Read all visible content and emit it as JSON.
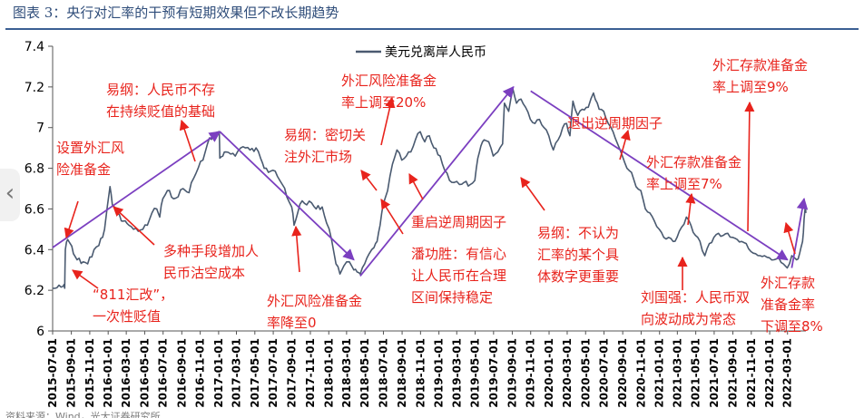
{
  "page": {
    "title": "图表 3：央行对汇率的干预有短期效果但不改长期趋势",
    "footer": "资料来源：Wind，光大证券研究所"
  },
  "colors": {
    "series": "#4a5a70",
    "trend": "#7b3fc0",
    "annotation": "#e8231c",
    "title": "#2f4d7a"
  },
  "chart_data": {
    "type": "line",
    "title": "",
    "xlabel": "",
    "ylabel": "",
    "ylim": [
      6.0,
      7.4
    ],
    "yticks": [
      6,
      6.2,
      6.4,
      6.6,
      6.8,
      7,
      7.2,
      7.4
    ],
    "xrange": [
      "2015-07-01",
      "2022-05-01"
    ],
    "xticks": [
      "2015-07-01",
      "2015-09-01",
      "2015-11-01",
      "2016-01-01",
      "2016-03-01",
      "2016-05-01",
      "2016-07-01",
      "2016-09-01",
      "2016-11-01",
      "2017-01-01",
      "2017-03-01",
      "2017-05-01",
      "2017-07-01",
      "2017-09-01",
      "2017-11-01",
      "2018-01-01",
      "2018-03-01",
      "2018-05-01",
      "2018-07-01",
      "2018-09-01",
      "2018-11-01",
      "2019-01-01",
      "2019-03-01",
      "2019-05-01",
      "2019-07-01",
      "2019-09-01",
      "2019-11-01",
      "2020-01-01",
      "2020-03-01",
      "2020-05-01",
      "2020-07-01",
      "2020-09-01",
      "2020-11-01",
      "2021-01-01",
      "2021-03-01",
      "2021-05-01",
      "2021-07-01",
      "2021-09-01",
      "2021-11-01",
      "2022-01-01",
      "2022-03-01"
    ],
    "grid": false,
    "legend": "top-center",
    "series": [
      {
        "name": "美元兑离岸人民币",
        "points": [
          [
            "2015-07-01",
            6.21
          ],
          [
            "2015-08-05",
            6.22
          ],
          [
            "2015-08-10",
            6.21
          ],
          [
            "2015-08-12",
            6.4
          ],
          [
            "2015-08-20",
            6.45
          ],
          [
            "2015-08-28",
            6.43
          ],
          [
            "2015-09-08",
            6.38
          ],
          [
            "2015-09-20",
            6.35
          ],
          [
            "2015-10-10",
            6.34
          ],
          [
            "2015-10-25",
            6.33
          ],
          [
            "2015-11-15",
            6.4
          ],
          [
            "2015-12-01",
            6.42
          ],
          [
            "2015-12-20",
            6.5
          ],
          [
            "2016-01-07",
            6.71
          ],
          [
            "2016-01-15",
            6.62
          ],
          [
            "2016-02-01",
            6.58
          ],
          [
            "2016-02-20",
            6.54
          ],
          [
            "2016-03-10",
            6.52
          ],
          [
            "2016-03-25",
            6.5
          ],
          [
            "2016-04-10",
            6.49
          ],
          [
            "2016-04-25",
            6.5
          ],
          [
            "2016-05-10",
            6.52
          ],
          [
            "2016-05-25",
            6.58
          ],
          [
            "2016-06-10",
            6.6
          ],
          [
            "2016-06-20",
            6.56
          ],
          [
            "2016-06-30",
            6.65
          ],
          [
            "2016-07-15",
            6.69
          ],
          [
            "2016-08-05",
            6.65
          ],
          [
            "2016-08-20",
            6.66
          ],
          [
            "2016-09-05",
            6.7
          ],
          [
            "2016-09-25",
            6.68
          ],
          [
            "2016-10-10",
            6.75
          ],
          [
            "2016-10-25",
            6.8
          ],
          [
            "2016-11-10",
            6.84
          ],
          [
            "2016-11-25",
            6.92
          ],
          [
            "2016-12-15",
            6.97
          ],
          [
            "2017-01-03",
            6.98
          ],
          [
            "2017-01-05",
            6.85
          ],
          [
            "2017-01-15",
            6.86
          ],
          [
            "2017-01-25",
            6.88
          ],
          [
            "2017-02-10",
            6.87
          ],
          [
            "2017-02-25",
            6.86
          ],
          [
            "2017-03-15",
            6.9
          ],
          [
            "2017-03-31",
            6.9
          ],
          [
            "2017-04-15",
            6.89
          ],
          [
            "2017-05-05",
            6.9
          ],
          [
            "2017-05-20",
            6.85
          ],
          [
            "2017-06-01",
            6.8
          ],
          [
            "2017-06-15",
            6.78
          ],
          [
            "2017-06-30",
            6.79
          ],
          [
            "2017-07-15",
            6.76
          ],
          [
            "2017-07-31",
            6.72
          ],
          [
            "2017-08-15",
            6.66
          ],
          [
            "2017-08-31",
            6.61
          ],
          [
            "2017-09-08",
            6.52
          ],
          [
            "2017-09-20",
            6.58
          ],
          [
            "2017-10-05",
            6.64
          ],
          [
            "2017-10-20",
            6.62
          ],
          [
            "2017-11-05",
            6.63
          ],
          [
            "2017-11-20",
            6.6
          ],
          [
            "2017-12-10",
            6.61
          ],
          [
            "2017-12-25",
            6.53
          ],
          [
            "2018-01-10",
            6.45
          ],
          [
            "2018-01-25",
            6.33
          ],
          [
            "2018-02-07",
            6.28
          ],
          [
            "2018-02-20",
            6.32
          ],
          [
            "2018-03-10",
            6.34
          ],
          [
            "2018-03-25",
            6.3
          ],
          [
            "2018-04-05",
            6.29
          ],
          [
            "2018-04-15",
            6.28
          ],
          [
            "2018-04-30",
            6.33
          ],
          [
            "2018-05-15",
            6.38
          ],
          [
            "2018-05-31",
            6.41
          ],
          [
            "2018-06-10",
            6.44
          ],
          [
            "2018-06-20",
            6.52
          ],
          [
            "2018-06-30",
            6.62
          ],
          [
            "2018-07-15",
            6.69
          ],
          [
            "2018-07-31",
            6.82
          ],
          [
            "2018-08-15",
            6.89
          ],
          [
            "2018-08-31",
            6.84
          ],
          [
            "2018-09-15",
            6.86
          ],
          [
            "2018-09-30",
            6.88
          ],
          [
            "2018-10-15",
            6.94
          ],
          [
            "2018-10-31",
            6.98
          ],
          [
            "2018-11-15",
            6.93
          ],
          [
            "2018-11-30",
            6.96
          ],
          [
            "2018-12-15",
            6.9
          ],
          [
            "2019-01-05",
            6.86
          ],
          [
            "2019-01-20",
            6.79
          ],
          [
            "2019-02-05",
            6.74
          ],
          [
            "2019-02-20",
            6.73
          ],
          [
            "2019-03-10",
            6.72
          ],
          [
            "2019-03-25",
            6.73
          ],
          [
            "2019-04-15",
            6.72
          ],
          [
            "2019-04-30",
            6.74
          ],
          [
            "2019-05-10",
            6.85
          ],
          [
            "2019-05-20",
            6.91
          ],
          [
            "2019-05-31",
            6.94
          ],
          [
            "2019-06-15",
            6.93
          ],
          [
            "2019-06-30",
            6.86
          ],
          [
            "2019-07-15",
            6.88
          ],
          [
            "2019-07-31",
            6.92
          ],
          [
            "2019-08-06",
            7.12
          ],
          [
            "2019-08-20",
            7.08
          ],
          [
            "2019-09-03",
            7.19
          ],
          [
            "2019-09-15",
            7.12
          ],
          [
            "2019-09-30",
            7.14
          ],
          [
            "2019-10-15",
            7.1
          ],
          [
            "2019-10-31",
            7.04
          ],
          [
            "2019-11-15",
            7.02
          ],
          [
            "2019-11-30",
            7.04
          ],
          [
            "2019-12-15",
            7.0
          ],
          [
            "2019-12-31",
            6.96
          ],
          [
            "2020-01-15",
            6.89
          ],
          [
            "2020-01-31",
            6.94
          ],
          [
            "2020-02-15",
            7.0
          ],
          [
            "2020-02-28",
            7.02
          ],
          [
            "2020-03-10",
            6.96
          ],
          [
            "2020-03-20",
            7.13
          ],
          [
            "2020-04-05",
            7.06
          ],
          [
            "2020-04-20",
            7.09
          ],
          [
            "2020-05-10",
            7.1
          ],
          [
            "2020-05-27",
            7.17
          ],
          [
            "2020-06-15",
            7.09
          ],
          [
            "2020-06-30",
            7.08
          ],
          [
            "2020-07-15",
            7.02
          ],
          [
            "2020-07-31",
            6.98
          ],
          [
            "2020-08-15",
            6.92
          ],
          [
            "2020-08-31",
            6.86
          ],
          [
            "2020-09-15",
            6.8
          ],
          [
            "2020-09-30",
            6.78
          ],
          [
            "2020-10-15",
            6.71
          ],
          [
            "2020-10-31",
            6.69
          ],
          [
            "2020-11-15",
            6.6
          ],
          [
            "2020-11-30",
            6.58
          ],
          [
            "2020-12-15",
            6.54
          ],
          [
            "2020-12-31",
            6.5
          ],
          [
            "2021-01-15",
            6.46
          ],
          [
            "2021-01-31",
            6.46
          ],
          [
            "2021-02-15",
            6.44
          ],
          [
            "2021-02-28",
            6.46
          ],
          [
            "2021-03-15",
            6.51
          ],
          [
            "2021-03-31",
            6.56
          ],
          [
            "2021-04-15",
            6.52
          ],
          [
            "2021-04-30",
            6.47
          ],
          [
            "2021-05-15",
            6.44
          ],
          [
            "2021-05-31",
            6.37
          ],
          [
            "2021-06-15",
            6.43
          ],
          [
            "2021-06-30",
            6.46
          ],
          [
            "2021-07-15",
            6.48
          ],
          [
            "2021-07-31",
            6.47
          ],
          [
            "2021-08-15",
            6.48
          ],
          [
            "2021-08-31",
            6.46
          ],
          [
            "2021-09-15",
            6.45
          ],
          [
            "2021-09-30",
            6.44
          ],
          [
            "2021-10-15",
            6.43
          ],
          [
            "2021-10-31",
            6.39
          ],
          [
            "2021-11-15",
            6.38
          ],
          [
            "2021-11-30",
            6.37
          ],
          [
            "2021-12-15",
            6.37
          ],
          [
            "2021-12-31",
            6.36
          ],
          [
            "2022-01-15",
            6.35
          ],
          [
            "2022-01-31",
            6.36
          ],
          [
            "2022-02-15",
            6.33
          ],
          [
            "2022-02-28",
            6.31
          ],
          [
            "2022-03-15",
            6.37
          ],
          [
            "2022-03-31",
            6.35
          ],
          [
            "2022-04-10",
            6.38
          ],
          [
            "2022-04-20",
            6.44
          ],
          [
            "2022-04-25",
            6.55
          ],
          [
            "2022-04-30",
            6.62
          ],
          [
            "2022-05-01",
            6.58
          ]
        ]
      }
    ],
    "trend_arrows": [
      {
        "from": [
          "2015-07-01",
          6.41
        ],
        "to": [
          "2017-01-05",
          6.98
        ]
      },
      {
        "from": [
          "2017-01-05",
          6.98
        ],
        "to": [
          "2018-03-25",
          6.35
        ]
      },
      {
        "from": [
          "2018-04-15",
          6.27
        ],
        "to": [
          "2019-09-05",
          7.2
        ]
      },
      {
        "from": [
          "2019-11-01",
          7.18
        ],
        "to": [
          "2022-03-01",
          6.35
        ]
      },
      {
        "from": [
          "2022-03-15",
          6.31
        ],
        "to": [
          "2022-04-25",
          6.65
        ]
      }
    ],
    "annotations": [
      {
        "lines": [
          "设置外汇风",
          "险准备金"
        ]
      },
      {
        "lines": [
          "“811汇改”，",
          "一次性贬值"
        ]
      },
      {
        "lines": [
          "易纲：人民币不存",
          "在持续贬值的基础"
        ]
      },
      {
        "lines": [
          "多种手段增加人",
          "民币沽空成本"
        ]
      },
      {
        "lines": [
          "外汇风险准备金",
          "率降至0"
        ]
      },
      {
        "lines": [
          "易纲：密切关",
          "注外汇市场"
        ]
      },
      {
        "lines": [
          "外汇风险准备金",
          "率上调至20%"
        ]
      },
      {
        "lines": [
          "重启逆周期因子"
        ]
      },
      {
        "lines": [
          "潘功胜：有信心",
          "让人民币在合理",
          "区间保持稳定"
        ]
      },
      {
        "lines": [
          "易纲：不认为",
          "汇率的某个具",
          "体数字更重要"
        ]
      },
      {
        "lines": [
          "退出逆周期因子"
        ]
      },
      {
        "lines": [
          "外汇存款准备金",
          "率上调至7%"
        ]
      },
      {
        "lines": [
          "外汇存款准备金",
          "率上调至9%"
        ]
      },
      {
        "lines": [
          "刘国强：人民币双",
          "向波动成为常态"
        ]
      },
      {
        "lines": [
          "外汇存款",
          "准备金率",
          "下调至8%"
        ]
      }
    ]
  }
}
